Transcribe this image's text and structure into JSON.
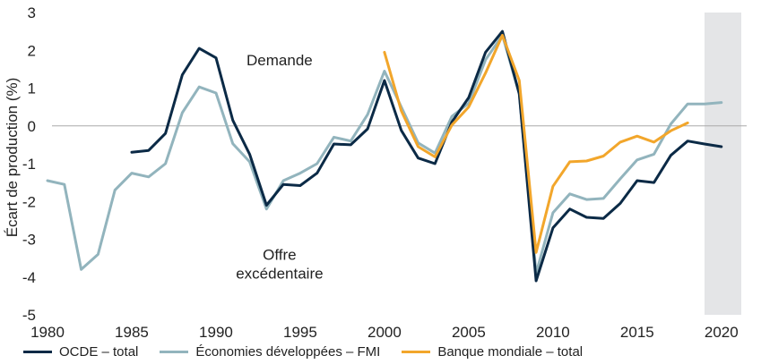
{
  "chart_data": {
    "type": "line",
    "title": "",
    "xlabel": "",
    "ylabel": "Écart de production (%)",
    "xlim": [
      1980,
      2021.5
    ],
    "ylim": [
      -5,
      3
    ],
    "x_ticks": [
      1980,
      1985,
      1990,
      1995,
      2000,
      2005,
      2010,
      2015,
      2020
    ],
    "y_ticks": [
      3,
      2,
      1,
      0,
      -1,
      -2,
      -3,
      -4,
      -5
    ],
    "shaded_region": {
      "from": 2019,
      "to": 2021.5,
      "color": "#e4e5e7"
    },
    "annotations": [
      {
        "text": "Demande",
        "x": 2000,
        "y": 1.75
      },
      {
        "text": "Offre",
        "x": 2000,
        "y": -3.4
      },
      {
        "text": "excédentaire",
        "x": 2000,
        "y": -3.9
      }
    ],
    "series": [
      {
        "name": "OCDE – total",
        "color": "#0b2a46",
        "x": [
          1985,
          1986,
          1987,
          1988,
          1989,
          1990,
          1991,
          1992,
          1993,
          1994,
          1995,
          1996,
          1997,
          1998,
          1999,
          2000,
          2001,
          2002,
          2003,
          2004,
          2005,
          2006,
          2007,
          2008,
          2009,
          2010,
          2011,
          2012,
          2013,
          2014,
          2015,
          2016,
          2017,
          2018,
          2019,
          2020
        ],
        "values": [
          -0.7,
          -0.65,
          -0.2,
          1.35,
          2.05,
          1.8,
          0.15,
          -0.75,
          -2.1,
          -1.55,
          -1.58,
          -1.25,
          -0.48,
          -0.5,
          -0.08,
          1.2,
          -0.12,
          -0.85,
          -1.0,
          0.1,
          0.75,
          1.95,
          2.5,
          0.85,
          -4.1,
          -2.7,
          -2.2,
          -2.42,
          -2.45,
          -2.05,
          -1.45,
          -1.5,
          -0.78,
          -0.4,
          -0.48,
          -0.55
        ]
      },
      {
        "name": "Économies développées – FMI",
        "color": "#92b4bd",
        "x": [
          1980,
          1981,
          1982,
          1983,
          1984,
          1985,
          1986,
          1987,
          1988,
          1989,
          1990,
          1991,
          1992,
          1993,
          1994,
          1995,
          1996,
          1997,
          1998,
          1999,
          2000,
          2001,
          2002,
          2003,
          2004,
          2005,
          2006,
          2007,
          2008,
          2009,
          2010,
          2011,
          2012,
          2013,
          2014,
          2015,
          2016,
          2017,
          2018,
          2019,
          2020
        ],
        "values": [
          -1.45,
          -1.55,
          -3.8,
          -3.4,
          -1.7,
          -1.25,
          -1.35,
          -1.0,
          0.35,
          1.03,
          0.87,
          -0.47,
          -0.95,
          -2.2,
          -1.45,
          -1.25,
          -1.0,
          -0.3,
          -0.4,
          0.3,
          1.45,
          0.5,
          -0.45,
          -0.72,
          0.25,
          0.6,
          1.75,
          2.4,
          0.85,
          -3.9,
          -2.3,
          -1.8,
          -1.95,
          -1.92,
          -1.4,
          -0.9,
          -0.75,
          0.05,
          0.58,
          0.58,
          0.62
        ]
      },
      {
        "name": "Banque mondiale – total",
        "color": "#f2a62b",
        "x": [
          2000,
          2001,
          2002,
          2003,
          2004,
          2005,
          2006,
          2007,
          2008,
          2009,
          2010,
          2011,
          2012,
          2013,
          2014,
          2015,
          2016,
          2017,
          2018
        ],
        "values": [
          1.95,
          0.4,
          -0.55,
          -0.82,
          0.02,
          0.5,
          1.4,
          2.4,
          1.2,
          -3.35,
          -1.6,
          -0.95,
          -0.93,
          -0.8,
          -0.43,
          -0.27,
          -0.43,
          -0.13,
          0.08
        ]
      }
    ]
  }
}
